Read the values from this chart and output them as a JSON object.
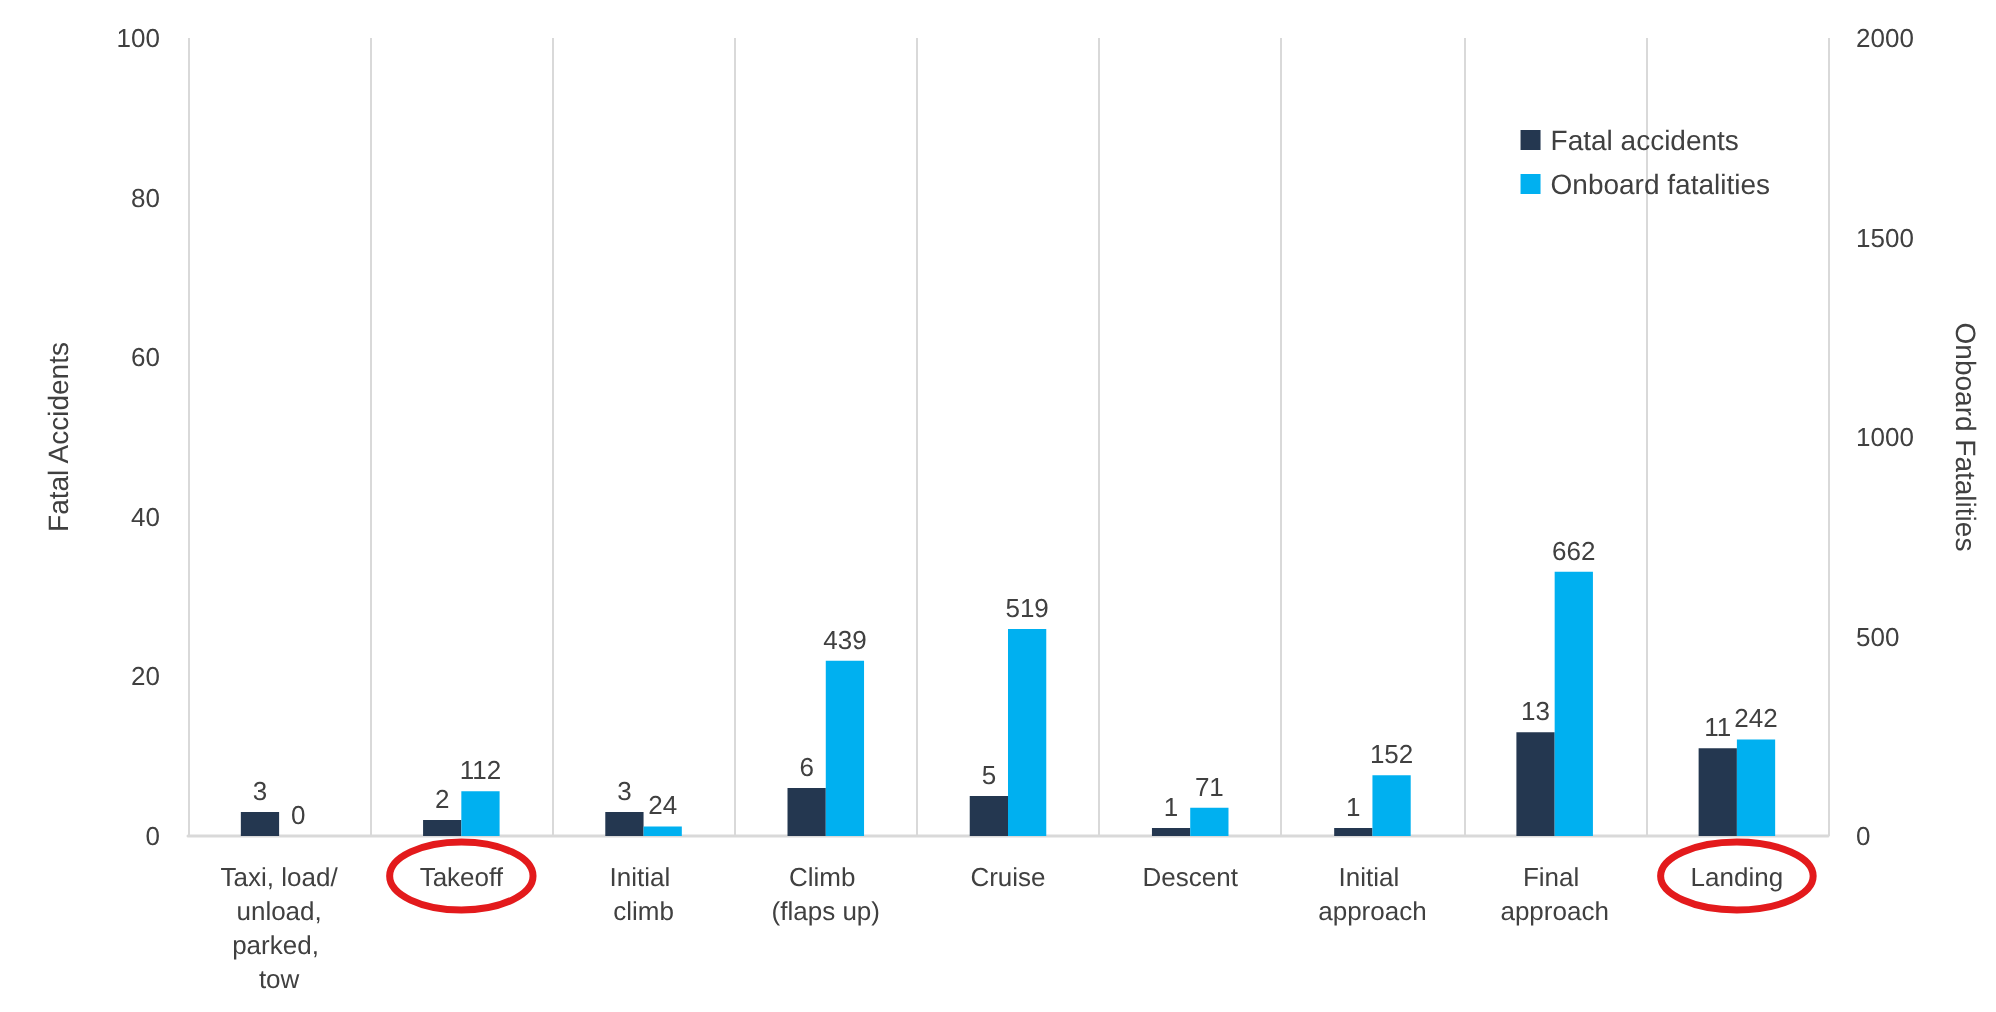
{
  "chart_data": {
    "type": "bar",
    "categories": [
      "Taxi, load/ unload, parked, tow",
      "Takeoff",
      "Initial climb",
      "Climb (flaps up)",
      "Cruise",
      "Descent",
      "Initial approach",
      "Final approach",
      "Landing"
    ],
    "series": [
      {
        "name": "Fatal accidents",
        "color": "#243750",
        "values": [
          3,
          2,
          3,
          6,
          5,
          1,
          1,
          13,
          11
        ]
      },
      {
        "name": "Onboard fatalities",
        "color": "#00b0f0",
        "axis": "y2",
        "values": [
          0,
          112,
          24,
          439,
          519,
          71,
          152,
          662,
          242
        ]
      }
    ],
    "ylabel": "Fatal Accidents",
    "y2label": "Onboard Fatalities",
    "ylim": [
      0,
      100
    ],
    "yticks": [
      0,
      20,
      40,
      60,
      80,
      100
    ],
    "y2lim": [
      0,
      2000
    ],
    "y2ticks": [
      0,
      500,
      1000,
      1500,
      2000
    ],
    "grid": "x",
    "legend": "top right",
    "data_labels": true
  }
}
